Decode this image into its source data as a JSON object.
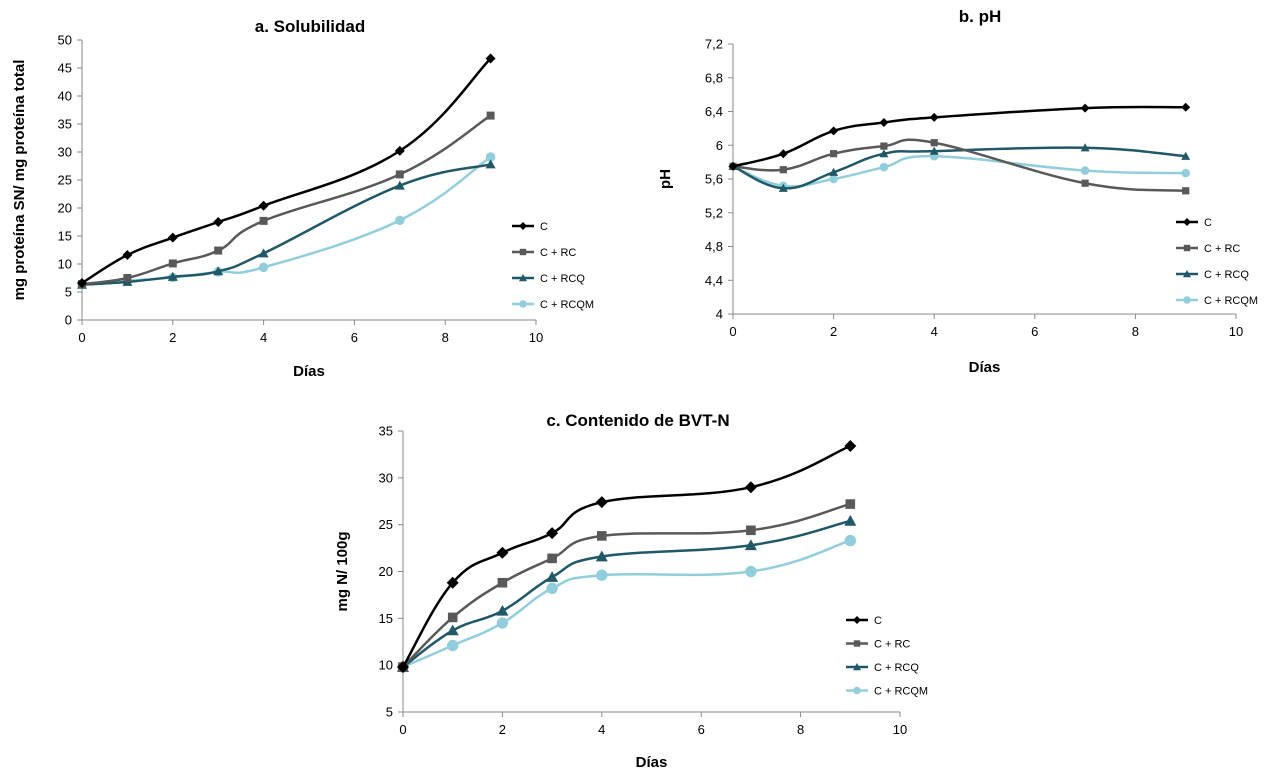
{
  "colors": {
    "C": "#000000",
    "C + RC": "#595959",
    "C + RCQ": "#215867",
    "C + RCQM": "#92cddc"
  },
  "chart_data": [
    {
      "type": "line",
      "title": "a. Solubilidad",
      "xlabel": "Días",
      "ylabel": "mg proteína SN/ mg proteína total",
      "xlim": [
        0,
        10
      ],
      "ylim": [
        0,
        50
      ],
      "xticks": [
        "0",
        "2",
        "4",
        "6",
        "8",
        "10"
      ],
      "yticks": [
        "0",
        "5",
        "10",
        "15",
        "20",
        "25",
        "30",
        "35",
        "40",
        "45",
        "50"
      ],
      "x": [
        0,
        1,
        2,
        3,
        4,
        7,
        9
      ],
      "legend_position": "right",
      "series": [
        {
          "name": "C",
          "marker": "diamond",
          "values": [
            6.6,
            11.6,
            14.7,
            17.5,
            20.4,
            30.2,
            46.7
          ]
        },
        {
          "name": "C + RC",
          "marker": "square",
          "values": [
            6.4,
            7.5,
            10.1,
            12.4,
            17.7,
            26.0,
            36.5
          ]
        },
        {
          "name": "C + RCQ",
          "marker": "triangle",
          "values": [
            6.3,
            6.8,
            7.7,
            8.7,
            11.9,
            24.0,
            27.8
          ]
        },
        {
          "name": "C + RCQM",
          "marker": "circle",
          "values": [
            6.4,
            7.0,
            7.6,
            8.6,
            9.4,
            17.8,
            29.1
          ]
        }
      ]
    },
    {
      "type": "line",
      "title": "b. pH",
      "xlabel": "Días",
      "ylabel": "pH",
      "xlim": [
        0,
        10
      ],
      "ylim": [
        4,
        7.2
      ],
      "xticks": [
        "0",
        "2",
        "4",
        "6",
        "8",
        "10"
      ],
      "yticks": [
        "4",
        "4,4",
        "4,8",
        "5,2",
        "5,6",
        "6",
        "6,4",
        "6,8",
        "7,2"
      ],
      "x": [
        0,
        1,
        2,
        3,
        4,
        7,
        9
      ],
      "legend_position": "right",
      "series": [
        {
          "name": "C",
          "marker": "diamond",
          "values": [
            5.75,
            5.9,
            6.17,
            6.27,
            6.33,
            6.44,
            6.45
          ]
        },
        {
          "name": "C + RC",
          "marker": "square",
          "values": [
            5.75,
            5.71,
            5.9,
            5.99,
            6.03,
            5.55,
            5.46
          ]
        },
        {
          "name": "C + RCQ",
          "marker": "triangle",
          "values": [
            5.75,
            5.49,
            5.68,
            5.9,
            5.93,
            5.97,
            5.87
          ]
        },
        {
          "name": "C + RCQM",
          "marker": "circle",
          "values": [
            5.75,
            5.52,
            5.6,
            5.74,
            5.87,
            5.7,
            5.67
          ]
        }
      ]
    },
    {
      "type": "line",
      "title": "c. Contenido de BVT-N",
      "xlabel": "Días",
      "ylabel": "mg N/ 100g",
      "xlim": [
        0,
        10
      ],
      "ylim": [
        5,
        35
      ],
      "xticks": [
        "0",
        "2",
        "4",
        "6",
        "8",
        "10"
      ],
      "yticks": [
        "5",
        "10",
        "15",
        "20",
        "25",
        "30",
        "35"
      ],
      "x": [
        0,
        1,
        2,
        3,
        4,
        7,
        9
      ],
      "legend_position": "right",
      "series": [
        {
          "name": "C",
          "marker": "diamond",
          "values": [
            9.8,
            18.8,
            22.0,
            24.1,
            27.4,
            29.0,
            33.4
          ]
        },
        {
          "name": "C + RC",
          "marker": "square",
          "values": [
            9.8,
            15.1,
            18.8,
            21.4,
            23.8,
            24.4,
            27.2
          ]
        },
        {
          "name": "C + RCQ",
          "marker": "triangle",
          "values": [
            9.8,
            13.7,
            15.8,
            19.4,
            21.6,
            22.8,
            25.4
          ]
        },
        {
          "name": "C + RCQM",
          "marker": "circle",
          "values": [
            9.8,
            12.1,
            14.5,
            18.2,
            19.6,
            20.0,
            23.3
          ]
        }
      ]
    }
  ]
}
